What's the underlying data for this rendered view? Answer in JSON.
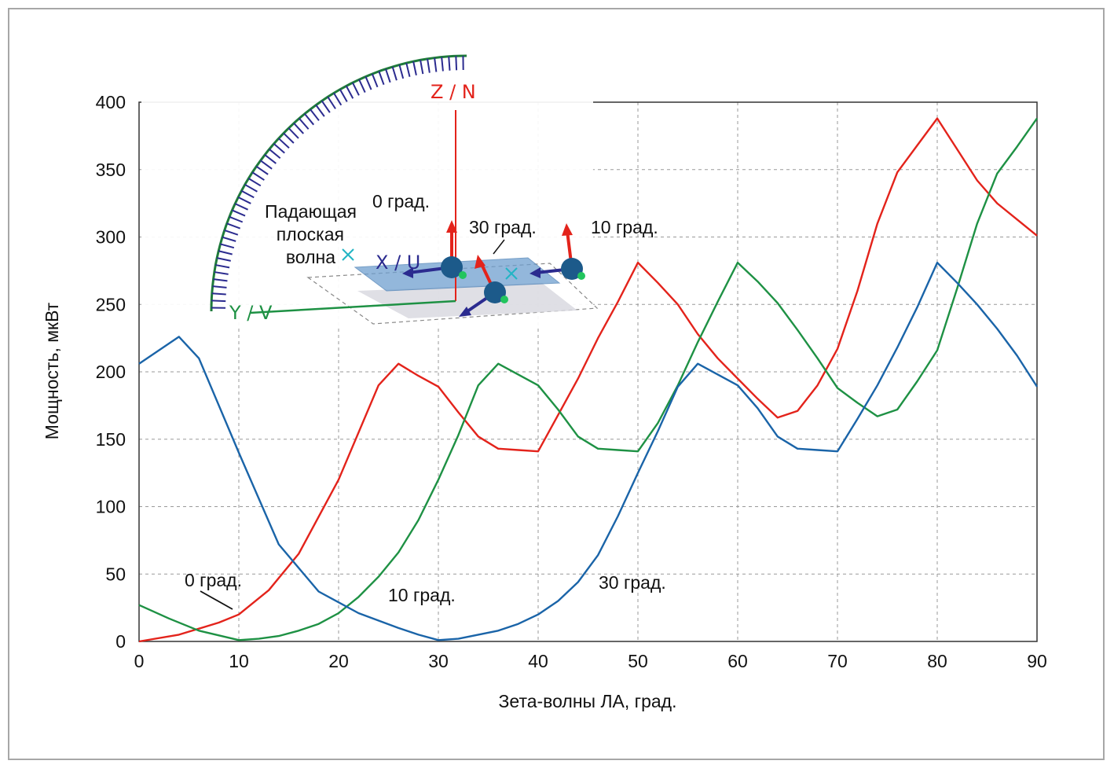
{
  "chart_data": {
    "type": "line",
    "xlabel": "Зета-волны ЛА, град.",
    "ylabel": "Мощность, мкВт",
    "xlim": [
      0,
      90
    ],
    "ylim": [
      0,
      400
    ],
    "x_ticks": [
      0,
      10,
      20,
      30,
      40,
      50,
      60,
      70,
      80,
      90
    ],
    "y_ticks": [
      0,
      50,
      100,
      150,
      200,
      250,
      300,
      350,
      400
    ],
    "grid": true,
    "series": [
      {
        "name": "0 град.",
        "color": "#e3231b",
        "x": [
          0,
          4,
          8,
          10,
          13,
          16,
          20,
          24,
          26,
          28,
          30,
          32,
          34,
          36,
          38,
          40,
          44,
          46,
          48,
          50,
          52,
          54,
          56,
          58,
          60,
          62,
          64,
          66,
          68,
          70,
          72,
          74,
          76,
          78,
          80,
          82,
          84,
          86,
          88,
          90
        ],
        "values": [
          0,
          5,
          14,
          20,
          38,
          65,
          120,
          190,
          206,
          197,
          189,
          170,
          152,
          143,
          142,
          141,
          195,
          225,
          252,
          281,
          266,
          250,
          228,
          210,
          195,
          180,
          166,
          171,
          190,
          217,
          260,
          310,
          348,
          368,
          388,
          365,
          342,
          325,
          313,
          301
        ]
      },
      {
        "name": "10 град.",
        "color": "#1e9144",
        "x": [
          0,
          3,
          6,
          10,
          12,
          14,
          16,
          18,
          20,
          22,
          24,
          26,
          28,
          30,
          32,
          34,
          36,
          38,
          40,
          42,
          44,
          46,
          48,
          50,
          52,
          54,
          56,
          58,
          60,
          62,
          64,
          66,
          68,
          70,
          72,
          74,
          76,
          78,
          80,
          82,
          84,
          86,
          88,
          90
        ],
        "values": [
          27,
          17,
          8,
          1,
          2,
          4,
          8,
          13,
          21,
          33,
          48,
          66,
          90,
          120,
          153,
          190,
          206,
          198,
          190,
          172,
          152,
          143,
          142,
          141,
          162,
          190,
          222,
          252,
          281,
          267,
          251,
          231,
          210,
          188,
          177,
          167,
          172,
          193,
          216,
          262,
          310,
          347,
          367,
          388
        ]
      },
      {
        "name": "30 град.",
        "color": "#1a64a8",
        "x": [
          0,
          4,
          6,
          10,
          14,
          18,
          22,
          26,
          28,
          30,
          32,
          34,
          36,
          38,
          40,
          42,
          44,
          46,
          48,
          50,
          52,
          54,
          56,
          58,
          60,
          62,
          64,
          66,
          68,
          70,
          72,
          74,
          76,
          78,
          80,
          82,
          84,
          86,
          88,
          90
        ],
        "values": [
          206,
          226,
          210,
          140,
          72,
          37,
          21,
          10,
          5,
          1,
          2,
          5,
          8,
          13,
          20,
          30,
          44,
          64,
          93,
          125,
          156,
          189,
          206,
          198,
          190,
          173,
          152,
          143,
          142,
          141,
          165,
          190,
          218,
          248,
          281,
          266,
          250,
          232,
          212,
          189
        ]
      }
    ],
    "annotations": [
      "0 град.",
      "10 град.",
      "30 град."
    ]
  },
  "inset": {
    "label_z": "Z / N",
    "label_x": "X / U",
    "label_y": "Y / V",
    "wave_label_line1": "Падающая",
    "wave_label_line2": "плоская",
    "wave_label_line3": "волна",
    "antenna_label_0": "0 град.",
    "antenna_label_30": "30 град.",
    "antenna_label_10": "10 град.",
    "colors": {
      "z_axis": "#e3231b",
      "y_axis": "#1e9144",
      "x_axis": "#2b2b8f",
      "arc": "#1e7a3a",
      "arrows": "#2b2b8f",
      "sphere": "#1c5a8a",
      "plane": "#6f9fcf"
    }
  }
}
